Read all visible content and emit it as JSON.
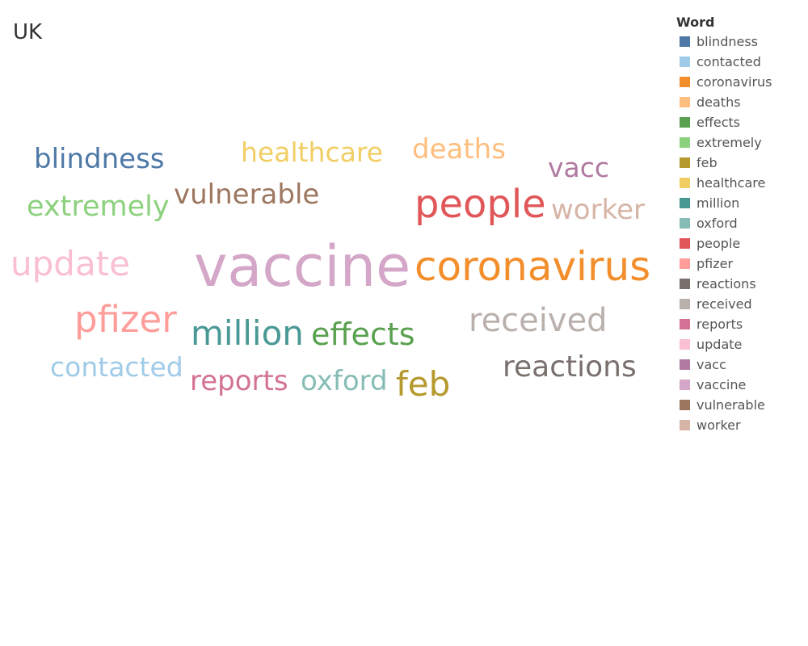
{
  "page": {
    "title": "UK"
  },
  "legend": {
    "title": "Word"
  },
  "chart_data": {
    "type": "word-cloud",
    "title": "UK",
    "color_field": "Word",
    "legend_placement": "top-right",
    "words": [
      {
        "word": "blindness",
        "color": "#4e79a7",
        "size_rank": 9
      },
      {
        "word": "contacted",
        "color": "#a0cbe8",
        "size_rank": 10
      },
      {
        "word": "coronavirus",
        "color": "#f28e2b",
        "size_rank": 2
      },
      {
        "word": "deaths",
        "color": "#ffbe7d",
        "size_rank": 11
      },
      {
        "word": "effects",
        "color": "#59a14f",
        "size_rank": 7
      },
      {
        "word": "extremely",
        "color": "#8cd17d",
        "size_rank": 12
      },
      {
        "word": "feb",
        "color": "#b6992d",
        "size_rank": 6
      },
      {
        "word": "healthcare",
        "color": "#f1ce63",
        "size_rank": 13
      },
      {
        "word": "million",
        "color": "#499894",
        "size_rank": 5
      },
      {
        "word": "oxford",
        "color": "#86bcb6",
        "size_rank": 14
      },
      {
        "word": "people",
        "color": "#e15759",
        "size_rank": 3
      },
      {
        "word": "pfizer",
        "color": "#ff9d9a",
        "size_rank": 4
      },
      {
        "word": "reactions",
        "color": "#79706e",
        "size_rank": 15
      },
      {
        "word": "received",
        "color": "#bab0ac",
        "size_rank": 8
      },
      {
        "word": "reports",
        "color": "#d37295",
        "size_rank": 16
      },
      {
        "word": "update",
        "color": "#fabfd2",
        "size_rank": 17
      },
      {
        "word": "vacc",
        "color": "#b07aa1",
        "size_rank": 18
      },
      {
        "word": "vaccine",
        "color": "#d4a6c8",
        "size_rank": 1
      },
      {
        "word": "vulnerable",
        "color": "#9d7660",
        "size_rank": 19
      },
      {
        "word": "worker",
        "color": "#d7b5a6",
        "size_rank": 20
      }
    ]
  }
}
